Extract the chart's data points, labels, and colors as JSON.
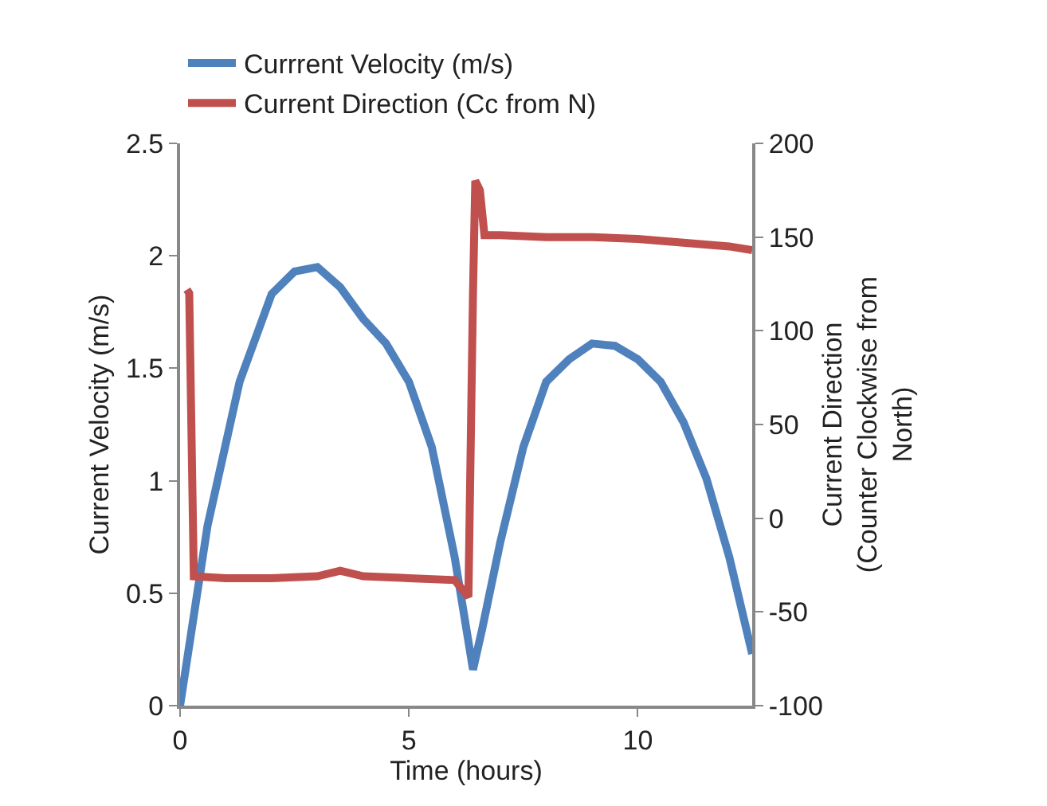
{
  "chart_data": {
    "type": "line",
    "xlabel": "Time (hours)",
    "ylabel": "Current Velocity (m/s)",
    "y2label": "Current Direction (Counter Clockwise from North)",
    "xlim": [
      0,
      12.5
    ],
    "xticks": [
      0,
      5,
      10
    ],
    "ylim": [
      0,
      2.5
    ],
    "yticks": [
      0,
      0.5,
      1,
      1.5,
      2,
      2.5
    ],
    "y2lim": [
      -100,
      200
    ],
    "y2ticks": [
      -100,
      -50,
      0,
      50,
      100,
      150,
      200
    ],
    "grid": false,
    "legend": "top left",
    "line_style": "solid",
    "marker": "none",
    "series": [
      {
        "name": "Currrent Velocity (m/s)",
        "color": "#4f81bd",
        "x": [
          0,
          0.6,
          1.3,
          2,
          2.5,
          3,
          3.5,
          4,
          4.5,
          5,
          5.5,
          6,
          6.4,
          6.6,
          7,
          7.5,
          8,
          8.5,
          9,
          9.5,
          10,
          10.5,
          11,
          11.5,
          12,
          12.5
        ],
        "values": [
          0,
          0.8,
          1.44,
          1.83,
          1.93,
          1.95,
          1.86,
          1.72,
          1.61,
          1.44,
          1.15,
          0.66,
          0.16,
          0.34,
          0.73,
          1.15,
          1.44,
          1.54,
          1.61,
          1.6,
          1.54,
          1.44,
          1.26,
          1.01,
          0.66,
          0.23
        ]
      },
      {
        "name": "Current Direction (Cc from N)",
        "color": "#c0504d",
        "axis": "y2",
        "x": [
          0.15,
          0.2,
          0.3,
          1,
          2,
          3,
          3.5,
          4,
          5,
          6,
          6.3,
          6.4,
          6.45,
          6.55,
          6.65,
          7,
          8,
          9,
          10,
          11,
          12,
          12.5
        ],
        "values": [
          122,
          120,
          -31,
          -32,
          -32,
          -31,
          -28,
          -31,
          -32,
          -33,
          -42,
          120,
          180,
          175,
          151,
          151,
          150,
          150,
          149,
          147,
          145,
          143
        ]
      }
    ]
  }
}
